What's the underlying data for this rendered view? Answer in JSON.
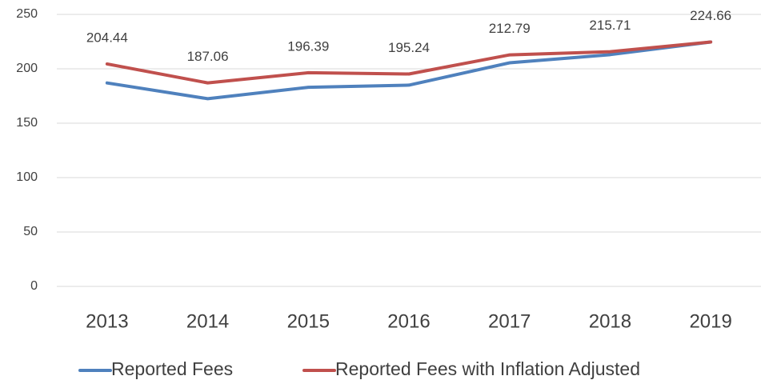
{
  "chart_data": {
    "type": "line",
    "categories": [
      "2013",
      "2014",
      "2015",
      "2016",
      "2017",
      "2018",
      "2019"
    ],
    "series": [
      {
        "name": "Reported Fees",
        "color": "#4f81bd",
        "values": [
          187,
          172.5,
          183,
          185,
          205.5,
          213,
          224.66
        ]
      },
      {
        "name": "Reported Fees with Inflation Adjusted",
        "color": "#c0504d",
        "values": [
          204.44,
          187.06,
          196.39,
          195.24,
          212.79,
          215.71,
          224.66
        ],
        "data_labels": true
      }
    ],
    "ylim": [
      0,
      250
    ],
    "yticks": [
      0,
      50,
      100,
      150,
      200,
      250
    ],
    "grid": true,
    "legend": "bottom"
  }
}
